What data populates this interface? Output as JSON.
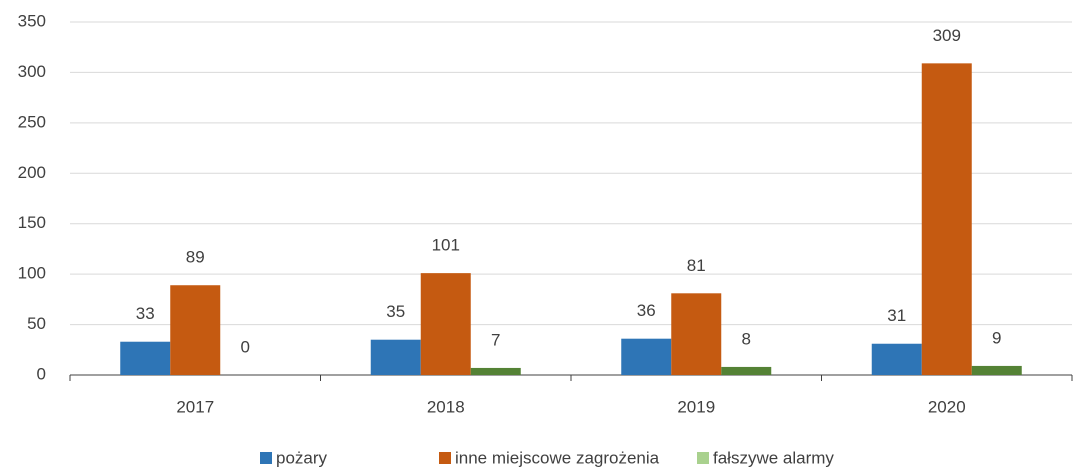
{
  "chart_data": {
    "type": "bar",
    "categories": [
      "2017",
      "2018",
      "2019",
      "2020"
    ],
    "series": [
      {
        "name": "pożary",
        "color": "#2e75b6",
        "values": [
          33,
          35,
          36,
          31
        ]
      },
      {
        "name": "inne miejscowe zagrożenia",
        "color": "#c55a11",
        "values": [
          89,
          101,
          81,
          309
        ]
      },
      {
        "name": "fałszywe alarmy",
        "color": "#548235",
        "values": [
          0,
          7,
          8,
          9
        ]
      }
    ],
    "ylim": [
      0,
      350
    ],
    "yticks": [
      0,
      50,
      100,
      150,
      200,
      250,
      300,
      350
    ],
    "grid": true,
    "legend": "bottom"
  }
}
